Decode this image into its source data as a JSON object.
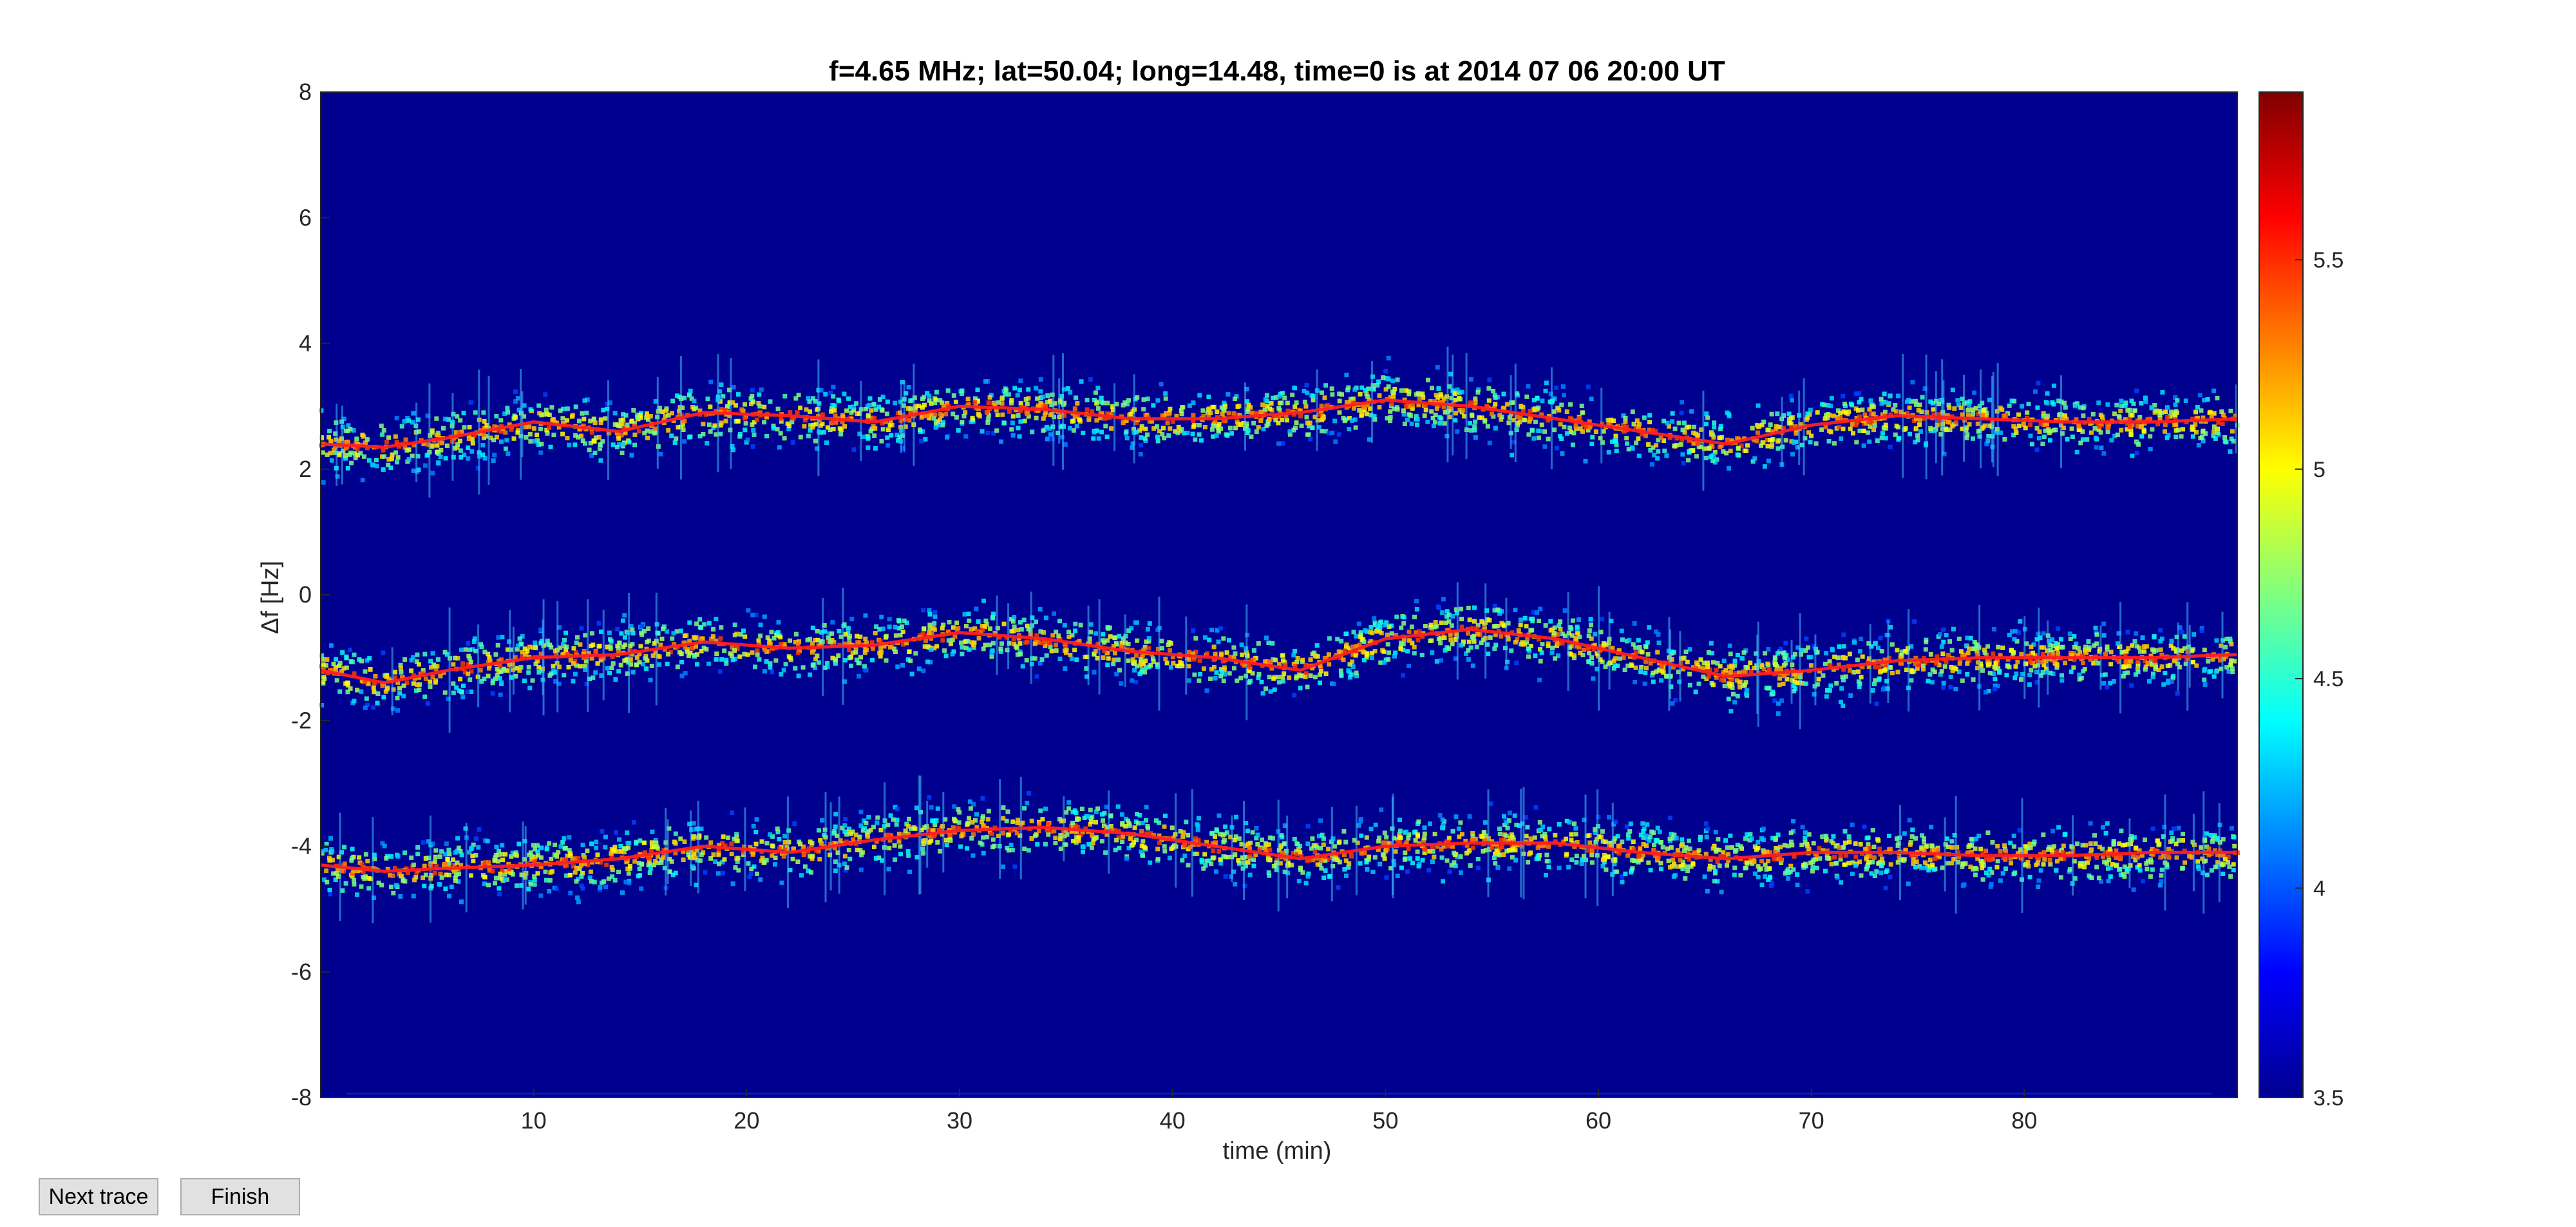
{
  "chart_data": {
    "type": "heatmap",
    "title": "f=4.65 MHz;  lat=50.04; long=14.48, time=0 is at 2014 07 06 20:00 UT",
    "xlabel": "time (min)",
    "ylabel": "Δf [Hz]",
    "xlim": [
      0,
      90
    ],
    "ylim": [
      -8,
      8
    ],
    "xticks": [
      10,
      20,
      30,
      40,
      50,
      60,
      70,
      80
    ],
    "yticks": [
      -8,
      -6,
      -4,
      -2,
      0,
      2,
      4,
      6,
      8
    ],
    "colorbar": {
      "min": 3.5,
      "max": 5.9,
      "ticks": [
        3.5,
        4,
        4.5,
        5,
        5.5
      ]
    },
    "background_color": "#00008f",
    "grid": false,
    "traces": [
      {
        "x": [
          0,
          3,
          6,
          10,
          14,
          18,
          22,
          26,
          30,
          34,
          38,
          42,
          46,
          50,
          54,
          58,
          62,
          66,
          70,
          74,
          78,
          82,
          86,
          90
        ],
        "y": [
          2.4,
          2.35,
          2.5,
          2.75,
          2.6,
          2.9,
          2.85,
          2.75,
          3.0,
          2.95,
          2.8,
          2.8,
          2.9,
          3.1,
          3.0,
          2.8,
          2.6,
          2.4,
          2.7,
          2.85,
          2.8,
          2.75,
          2.75,
          2.8
        ]
      },
      {
        "x": [
          0,
          3,
          6,
          10,
          14,
          18,
          22,
          26,
          30,
          34,
          38,
          42,
          46,
          50,
          54,
          58,
          62,
          66,
          70,
          74,
          78,
          82,
          86,
          90
        ],
        "y": [
          -1.2,
          -1.4,
          -1.2,
          -1.0,
          -0.95,
          -0.75,
          -0.85,
          -0.8,
          -0.6,
          -0.7,
          -0.9,
          -1.0,
          -1.2,
          -0.7,
          -0.55,
          -0.7,
          -1.0,
          -1.3,
          -1.2,
          -1.05,
          -1.0,
          -1.0,
          -1.0,
          -0.95
        ]
      },
      {
        "x": [
          0,
          3,
          6,
          10,
          14,
          18,
          22,
          26,
          30,
          34,
          38,
          42,
          46,
          50,
          54,
          58,
          62,
          66,
          70,
          74,
          78,
          82,
          86,
          90
        ],
        "y": [
          -4.3,
          -4.4,
          -4.35,
          -4.3,
          -4.2,
          -4.0,
          -4.1,
          -3.9,
          -3.75,
          -3.7,
          -3.8,
          -4.0,
          -4.2,
          -4.0,
          -3.95,
          -3.95,
          -4.1,
          -4.2,
          -4.1,
          -4.1,
          -4.15,
          -4.15,
          -4.1,
          -4.1
        ]
      }
    ]
  },
  "buttons": {
    "next_trace": "Next trace",
    "finish": "Finish"
  }
}
